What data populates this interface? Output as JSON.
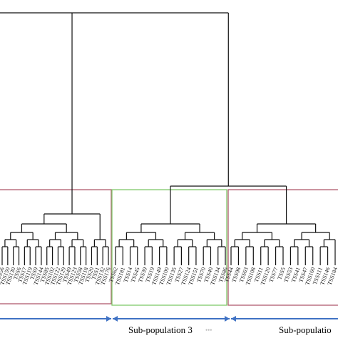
{
  "figure": {
    "captions": [
      "Sub-population 3",
      "Sub-populatio"
    ],
    "faint_mark": "•••",
    "colors": {
      "tree_line": "#111111",
      "box_red": "#b05a6e",
      "box_green": "#7fc86a",
      "arrow_blue": "#3f72c4",
      "label_text": "#222222"
    },
    "clusters": [
      {
        "name": "left-red-cluster",
        "box_color": "box_red",
        "labels": [
          "TSS56",
          "TSS150",
          "TSS130",
          "TSS6",
          "TSS17",
          "TSS119",
          "TSS9",
          "TSS144",
          "TSS85",
          "TSS102",
          "TSS122",
          "TSS129",
          "TSS49",
          "TSS123",
          "TSS58",
          "TSS118",
          "TSS20",
          "TSS1",
          "TSS132",
          "TSS176"
        ]
      },
      {
        "name": "sub-population-3-cluster",
        "box_color": "box_green",
        "labels": [
          "TSS62",
          "TSS181",
          "TSS14",
          "TSS45",
          "TSS39",
          "TSS19",
          "TSS149",
          "TSS100",
          "TSS135",
          "TSS27",
          "TSS124",
          "TSS151",
          "TSS70",
          "TSS40",
          "TSS134",
          "TSS86"
        ]
      },
      {
        "name": "sub-population-4-cluster",
        "box_color": "box_red",
        "labels": [
          "TSS44",
          "TSS98",
          "TSS63",
          "TSS108",
          "TSS11",
          "TSS120",
          "TSS77",
          "TSS5",
          "TSS53",
          "TSS41",
          "TSS47",
          "TSS160",
          "TSS111",
          "TSS146",
          "TSS184"
        ]
      }
    ]
  }
}
